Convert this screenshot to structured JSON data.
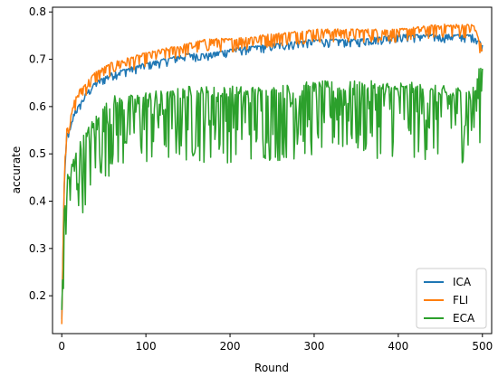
{
  "chart_data": {
    "type": "line",
    "title": "",
    "xlabel": "Round",
    "ylabel": "accurate",
    "xlim": [
      -11,
      511
    ],
    "ylim": [
      0.12,
      0.81
    ],
    "xticks": [
      0,
      100,
      200,
      300,
      400,
      500
    ],
    "yticks": [
      0.2,
      0.3,
      0.4,
      0.5,
      0.6,
      0.7,
      0.8
    ],
    "xtick_labels": [
      "0",
      "100",
      "200",
      "300",
      "400",
      "500"
    ],
    "ytick_labels": [
      "0.2",
      "0.3",
      "0.4",
      "0.5",
      "0.6",
      "0.7",
      "0.8"
    ],
    "grid": false,
    "legend_position": "lower-right",
    "x": [
      0,
      3,
      6,
      10,
      15,
      20,
      30,
      40,
      50,
      60,
      80,
      100,
      125,
      150,
      175,
      200,
      250,
      300,
      350,
      400,
      450,
      490,
      500
    ],
    "series": [
      {
        "name": "ICA",
        "color": "#1f77b4",
        "values": [
          0.15,
          0.44,
          0.54,
          0.55,
          0.59,
          0.6,
          0.63,
          0.65,
          0.66,
          0.67,
          0.68,
          0.69,
          0.7,
          0.71,
          0.71,
          0.72,
          0.73,
          0.74,
          0.74,
          0.75,
          0.75,
          0.75,
          0.73
        ]
      },
      {
        "name": "FLI",
        "color": "#ff7f0e",
        "values": [
          0.14,
          0.46,
          0.56,
          0.57,
          0.61,
          0.63,
          0.65,
          0.67,
          0.68,
          0.69,
          0.7,
          0.71,
          0.72,
          0.73,
          0.74,
          0.74,
          0.75,
          0.76,
          0.76,
          0.76,
          0.77,
          0.77,
          0.72
        ]
      },
      {
        "name": "ECA",
        "color": "#2ca02c",
        "values": [
          0.17,
          0.36,
          0.44,
          0.45,
          0.48,
          0.5,
          0.53,
          0.56,
          0.58,
          0.6,
          0.6,
          0.61,
          0.61,
          0.62,
          0.62,
          0.62,
          0.62,
          0.63,
          0.63,
          0.63,
          0.62,
          0.62,
          0.68
        ]
      }
    ],
    "noise_amplitude": [
      0.015,
      0.025,
      0.14
    ]
  }
}
